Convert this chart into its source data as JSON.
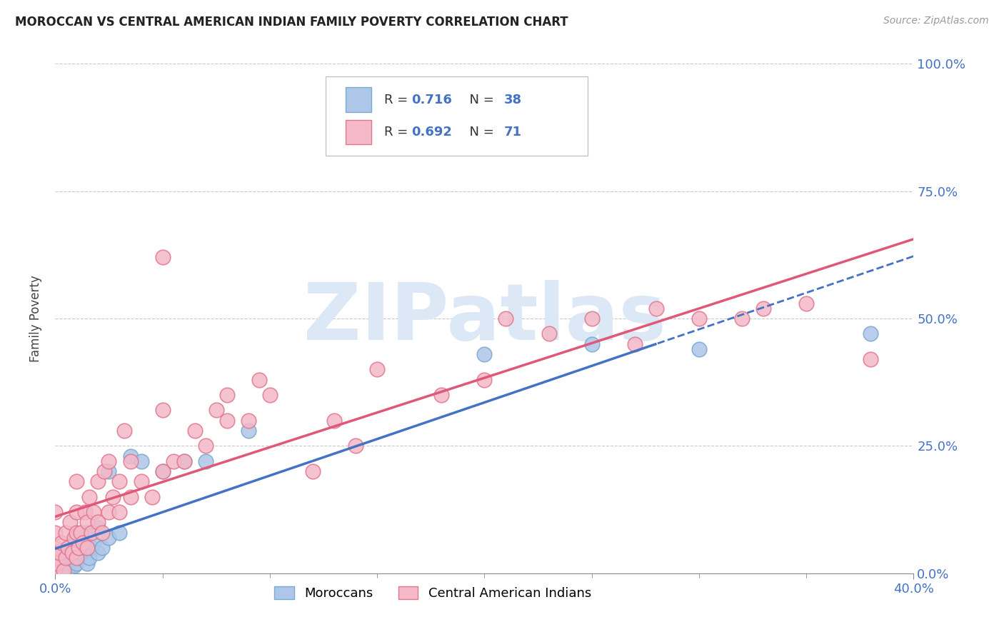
{
  "title": "MOROCCAN VS CENTRAL AMERICAN INDIAN FAMILY POVERTY CORRELATION CHART",
  "source": "Source: ZipAtlas.com",
  "ylabel_label": "Family Poverty",
  "xmin": 0.0,
  "xmax": 40.0,
  "ymin": 0.0,
  "ymax": 100.0,
  "xlabel_ticks": [
    0.0,
    40.0
  ],
  "ylabel_ticks": [
    0.0,
    25.0,
    50.0,
    75.0,
    100.0
  ],
  "moroccan_color": "#aec6e8",
  "moroccan_edge": "#7aaad0",
  "central_color": "#f4b8c8",
  "central_edge": "#e07890",
  "moroccan_R": 0.716,
  "moroccan_N": 38,
  "central_R": 0.692,
  "central_N": 71,
  "legend_label_moroccan": "Moroccans",
  "legend_label_central": "Central American Indians",
  "moroccan_scatter": [
    [
      0.0,
      0.5
    ],
    [
      0.0,
      2.0
    ],
    [
      0.2,
      1.0
    ],
    [
      0.3,
      0.5
    ],
    [
      0.4,
      3.0
    ],
    [
      0.5,
      2.0
    ],
    [
      0.5,
      4.0
    ],
    [
      0.6,
      1.0
    ],
    [
      0.7,
      5.0
    ],
    [
      0.8,
      3.0
    ],
    [
      0.9,
      1.5
    ],
    [
      1.0,
      2.0
    ],
    [
      1.0,
      5.0
    ],
    [
      1.0,
      7.0
    ],
    [
      1.1,
      3.0
    ],
    [
      1.2,
      4.0
    ],
    [
      1.3,
      6.0
    ],
    [
      1.5,
      2.0
    ],
    [
      1.5,
      8.0
    ],
    [
      1.6,
      3.0
    ],
    [
      1.7,
      5.0
    ],
    [
      1.8,
      6.0
    ],
    [
      2.0,
      4.0
    ],
    [
      2.0,
      9.0
    ],
    [
      2.2,
      5.0
    ],
    [
      2.5,
      7.0
    ],
    [
      2.5,
      20.0
    ],
    [
      3.0,
      8.0
    ],
    [
      3.5,
      23.0
    ],
    [
      4.0,
      22.0
    ],
    [
      5.0,
      20.0
    ],
    [
      6.0,
      22.0
    ],
    [
      7.0,
      22.0
    ],
    [
      9.0,
      28.0
    ],
    [
      20.0,
      43.0
    ],
    [
      25.0,
      45.0
    ],
    [
      30.0,
      44.0
    ],
    [
      38.0,
      47.0
    ]
  ],
  "central_scatter": [
    [
      0.0,
      1.0
    ],
    [
      0.0,
      3.0
    ],
    [
      0.0,
      5.0
    ],
    [
      0.0,
      8.0
    ],
    [
      0.0,
      12.0
    ],
    [
      0.1,
      2.0
    ],
    [
      0.2,
      4.0
    ],
    [
      0.3,
      6.0
    ],
    [
      0.4,
      0.5
    ],
    [
      0.5,
      3.0
    ],
    [
      0.5,
      8.0
    ],
    [
      0.6,
      5.0
    ],
    [
      0.7,
      10.0
    ],
    [
      0.8,
      4.0
    ],
    [
      0.9,
      7.0
    ],
    [
      1.0,
      3.0
    ],
    [
      1.0,
      8.0
    ],
    [
      1.0,
      12.0
    ],
    [
      1.0,
      18.0
    ],
    [
      1.1,
      5.0
    ],
    [
      1.2,
      8.0
    ],
    [
      1.3,
      6.0
    ],
    [
      1.4,
      12.0
    ],
    [
      1.5,
      5.0
    ],
    [
      1.5,
      10.0
    ],
    [
      1.6,
      15.0
    ],
    [
      1.7,
      8.0
    ],
    [
      1.8,
      12.0
    ],
    [
      2.0,
      10.0
    ],
    [
      2.0,
      18.0
    ],
    [
      2.2,
      8.0
    ],
    [
      2.3,
      20.0
    ],
    [
      2.5,
      12.0
    ],
    [
      2.5,
      22.0
    ],
    [
      2.7,
      15.0
    ],
    [
      3.0,
      12.0
    ],
    [
      3.0,
      18.0
    ],
    [
      3.2,
      28.0
    ],
    [
      3.5,
      15.0
    ],
    [
      3.5,
      22.0
    ],
    [
      4.0,
      18.0
    ],
    [
      4.5,
      15.0
    ],
    [
      5.0,
      20.0
    ],
    [
      5.0,
      32.0
    ],
    [
      5.5,
      22.0
    ],
    [
      6.0,
      22.0
    ],
    [
      6.5,
      28.0
    ],
    [
      7.0,
      25.0
    ],
    [
      7.5,
      32.0
    ],
    [
      8.0,
      30.0
    ],
    [
      8.0,
      35.0
    ],
    [
      9.0,
      30.0
    ],
    [
      9.5,
      38.0
    ],
    [
      10.0,
      35.0
    ],
    [
      12.0,
      20.0
    ],
    [
      13.0,
      30.0
    ],
    [
      14.0,
      25.0
    ],
    [
      15.0,
      40.0
    ],
    [
      18.0,
      35.0
    ],
    [
      20.0,
      38.0
    ],
    [
      21.0,
      50.0
    ],
    [
      23.0,
      47.0
    ],
    [
      25.0,
      50.0
    ],
    [
      27.0,
      45.0
    ],
    [
      28.0,
      52.0
    ],
    [
      30.0,
      50.0
    ],
    [
      32.0,
      50.0
    ],
    [
      33.0,
      52.0
    ],
    [
      35.0,
      53.0
    ],
    [
      38.0,
      42.0
    ],
    [
      5.0,
      62.0
    ]
  ],
  "moroccan_line_color": "#4472c4",
  "central_line_color": "#e05878",
  "dashed_line_color": "#4472c4",
  "background_color": "#ffffff",
  "grid_color": "#c8c8c8",
  "tick_label_color": "#4472c4",
  "watermark_text": "ZIPatlas",
  "watermark_color": "#dce8f5",
  "title_color": "#222222",
  "source_color": "#999999",
  "legend_text_color": "#333333",
  "legend_value_color": "#4472c4"
}
